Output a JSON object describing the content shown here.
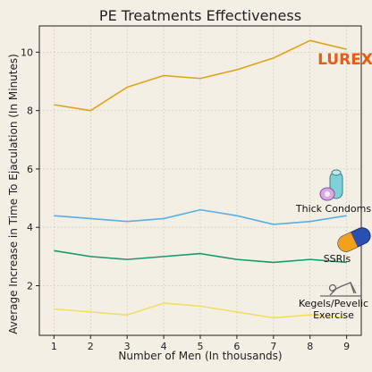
{
  "chart_data": {
    "type": "line",
    "title": "PE Treatments Effectiveness",
    "xlabel": "Number of Men (In thousands)",
    "ylabel": "Average Increase in Time To Ejaculation (In Minutes)",
    "x": [
      1,
      2,
      3,
      4,
      5,
      6,
      7,
      8,
      9
    ],
    "xlim": [
      0.6,
      9.4
    ],
    "ylim": [
      0.3,
      10.9
    ],
    "xticks": [
      "1",
      "2",
      "3",
      "4",
      "5",
      "6",
      "7",
      "8",
      "9"
    ],
    "yticks": [
      "2",
      "4",
      "6",
      "8",
      "10"
    ],
    "ytick_values": [
      2,
      4,
      6,
      8,
      10
    ],
    "grid": true,
    "series": [
      {
        "values": [
          8.2,
          8.0,
          8.8,
          9.2,
          9.1,
          9.4,
          9.8,
          10.4,
          10.1
        ],
        "color": "#e0a21a"
      },
      {
        "values": [
          4.4,
          4.3,
          4.2,
          4.3,
          4.6,
          4.4,
          4.1,
          4.2,
          4.4
        ],
        "color": "#5aafe0"
      },
      {
        "values": [
          3.2,
          3.0,
          2.9,
          3.0,
          3.1,
          2.9,
          2.8,
          2.9,
          2.8
        ],
        "color": "#17996b"
      },
      {
        "values": [
          1.2,
          1.1,
          1.0,
          1.4,
          1.3,
          1.1,
          0.9,
          1.0,
          0.9
        ],
        "color": "#f0e060"
      }
    ],
    "annotations": [
      {
        "text": "LUREX",
        "icon": "lurex-logo",
        "color": "#f05a10"
      },
      {
        "text": "Thick Condoms",
        "icon": "condom-icon"
      },
      {
        "text": "SSRIs",
        "icon": "pill-icon"
      },
      {
        "text": "Kegels/Pevelic",
        "text2": "Exercise",
        "icon": "exercise-icon"
      }
    ]
  }
}
